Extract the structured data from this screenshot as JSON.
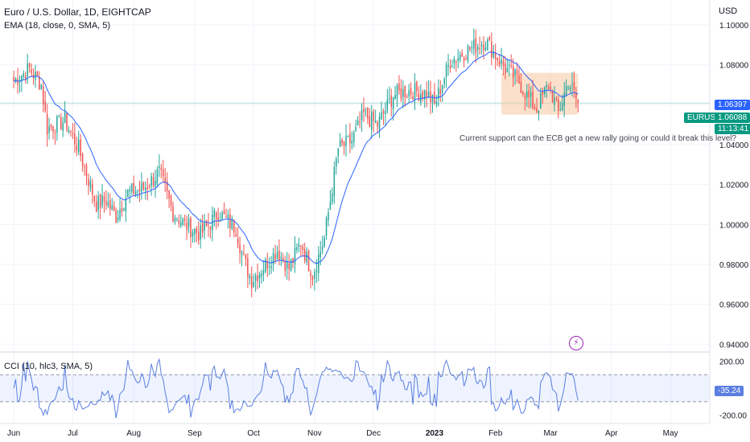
{
  "header": {
    "symbol_line": "Euro / U.S. Dollar, 1D, EIGHTCAP",
    "ema_label": "EMA (18, close, 0, SMA, 5)",
    "currency": "USD"
  },
  "price_tags": {
    "ema_value": "1.06397",
    "symbol": "EURUSD",
    "last_price": "1.06088",
    "countdown": "11:13:41"
  },
  "annotation": {
    "text": "Current support can the ECB get a new rally going or could it break this level?"
  },
  "cci_panel": {
    "label": "CCI (10, hlc3, SMA, 5)",
    "value_tag": "-35.24"
  },
  "colors": {
    "up": "#26a69a",
    "down": "#ef5350",
    "ema": "#2962ff",
    "cci": "#5b7fe0",
    "zone": "#f7c9a2",
    "price_line": "#26a69a"
  },
  "chart_data": [
    {
      "type": "candlestick",
      "title": "Euro / U.S. Dollar, 1D, EIGHTCAP",
      "y_ticks": [
        "1.10000",
        "1.08000",
        "1.06000",
        "1.04000",
        "1.02000",
        "1.00000",
        "0.98000",
        "0.96000",
        "0.94000"
      ],
      "ylim": [
        0.9365,
        1.1125
      ],
      "x_ticks": [
        {
          "label": "Jun",
          "d": 0
        },
        {
          "label": "Jul",
          "d": 30
        },
        {
          "label": "Aug",
          "d": 61
        },
        {
          "label": "Sep",
          "d": 92
        },
        {
          "label": "Oct",
          "d": 122
        },
        {
          "label": "Nov",
          "d": 153
        },
        {
          "label": "Dec",
          "d": 183
        },
        {
          "label": "2023",
          "d": 214,
          "bold": true
        },
        {
          "label": "Feb",
          "d": 245
        },
        {
          "label": "Mar",
          "d": 273
        },
        {
          "label": "Apr",
          "d": 304
        },
        {
          "label": "May",
          "d": 334
        }
      ],
      "x_range_days": [
        -7,
        354
      ],
      "last_price": 1.06088,
      "anchors": [
        [
          0,
          1.072
        ],
        [
          8,
          1.078
        ],
        [
          14,
          1.07
        ],
        [
          17,
          1.048
        ],
        [
          26,
          1.052
        ],
        [
          33,
          1.038
        ],
        [
          42,
          1.01
        ],
        [
          47,
          1.012
        ],
        [
          52,
          1.004
        ],
        [
          58,
          1.016
        ],
        [
          66,
          1.018
        ],
        [
          74,
          1.026
        ],
        [
          81,
          1.006
        ],
        [
          87,
          1.0
        ],
        [
          95,
          0.995
        ],
        [
          104,
          1.006
        ],
        [
          113,
          0.998
        ],
        [
          117,
          0.982
        ],
        [
          121,
          0.972
        ],
        [
          128,
          0.98
        ],
        [
          134,
          0.987
        ],
        [
          140,
          0.978
        ],
        [
          146,
          0.991
        ],
        [
          152,
          0.975
        ],
        [
          158,
          0.993
        ],
        [
          165,
          1.038
        ],
        [
          172,
          1.042
        ],
        [
          178,
          1.055
        ],
        [
          185,
          1.05
        ],
        [
          193,
          1.065
        ],
        [
          201,
          1.067
        ],
        [
          210,
          1.066
        ],
        [
          214,
          1.06
        ],
        [
          222,
          1.082
        ],
        [
          232,
          1.088
        ],
        [
          240,
          1.092
        ],
        [
          243,
          1.088
        ],
        [
          250,
          1.078
        ],
        [
          256,
          1.073
        ],
        [
          262,
          1.063
        ],
        [
          266,
          1.058
        ],
        [
          272,
          1.07
        ],
        [
          277,
          1.056
        ],
        [
          282,
          1.072
        ],
        [
          287,
          1.0609
        ]
      ],
      "ema_period": 18,
      "annotation_zone": {
        "d_from": 248,
        "d_to": 287,
        "y_from": 1.055,
        "y_to": 1.076
      }
    },
    {
      "type": "line",
      "title": "CCI (10, hlc3, SMA, 5)",
      "y_ticks": [
        "200.00",
        "-200.00"
      ],
      "ylim": [
        -255,
        250
      ],
      "band": [
        -100,
        100
      ],
      "last_value": -35.24
    }
  ]
}
